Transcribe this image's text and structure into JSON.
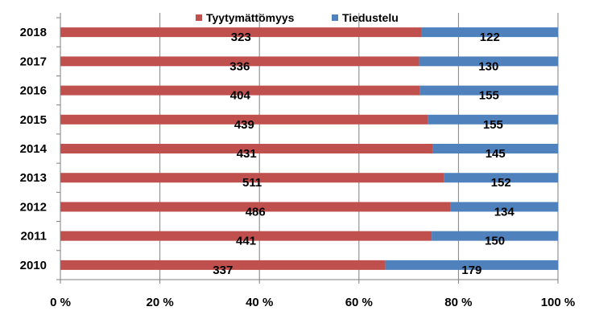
{
  "chart_data": {
    "type": "bar",
    "orientation": "horizontal",
    "stacking": "percent",
    "title": "",
    "xlabel": "",
    "ylabel": "",
    "categories": [
      "2010",
      "2011",
      "2012",
      "2013",
      "2014",
      "2015",
      "2016",
      "2017",
      "2018"
    ],
    "series": [
      {
        "name": "Tyytymättömyys",
        "color": "#C0504D",
        "values": [
          337,
          441,
          486,
          511,
          431,
          439,
          404,
          336,
          323
        ]
      },
      {
        "name": "Tiedustelu",
        "color": "#4F81BD",
        "values": [
          179,
          150,
          134,
          152,
          145,
          155,
          155,
          130,
          122
        ]
      }
    ],
    "xlim": [
      0,
      100
    ],
    "x_ticks": [
      "0 %",
      "20 %",
      "40 %",
      "60 %",
      "80 %",
      "100 %"
    ],
    "grid": "vertical",
    "legend_position": "top"
  }
}
